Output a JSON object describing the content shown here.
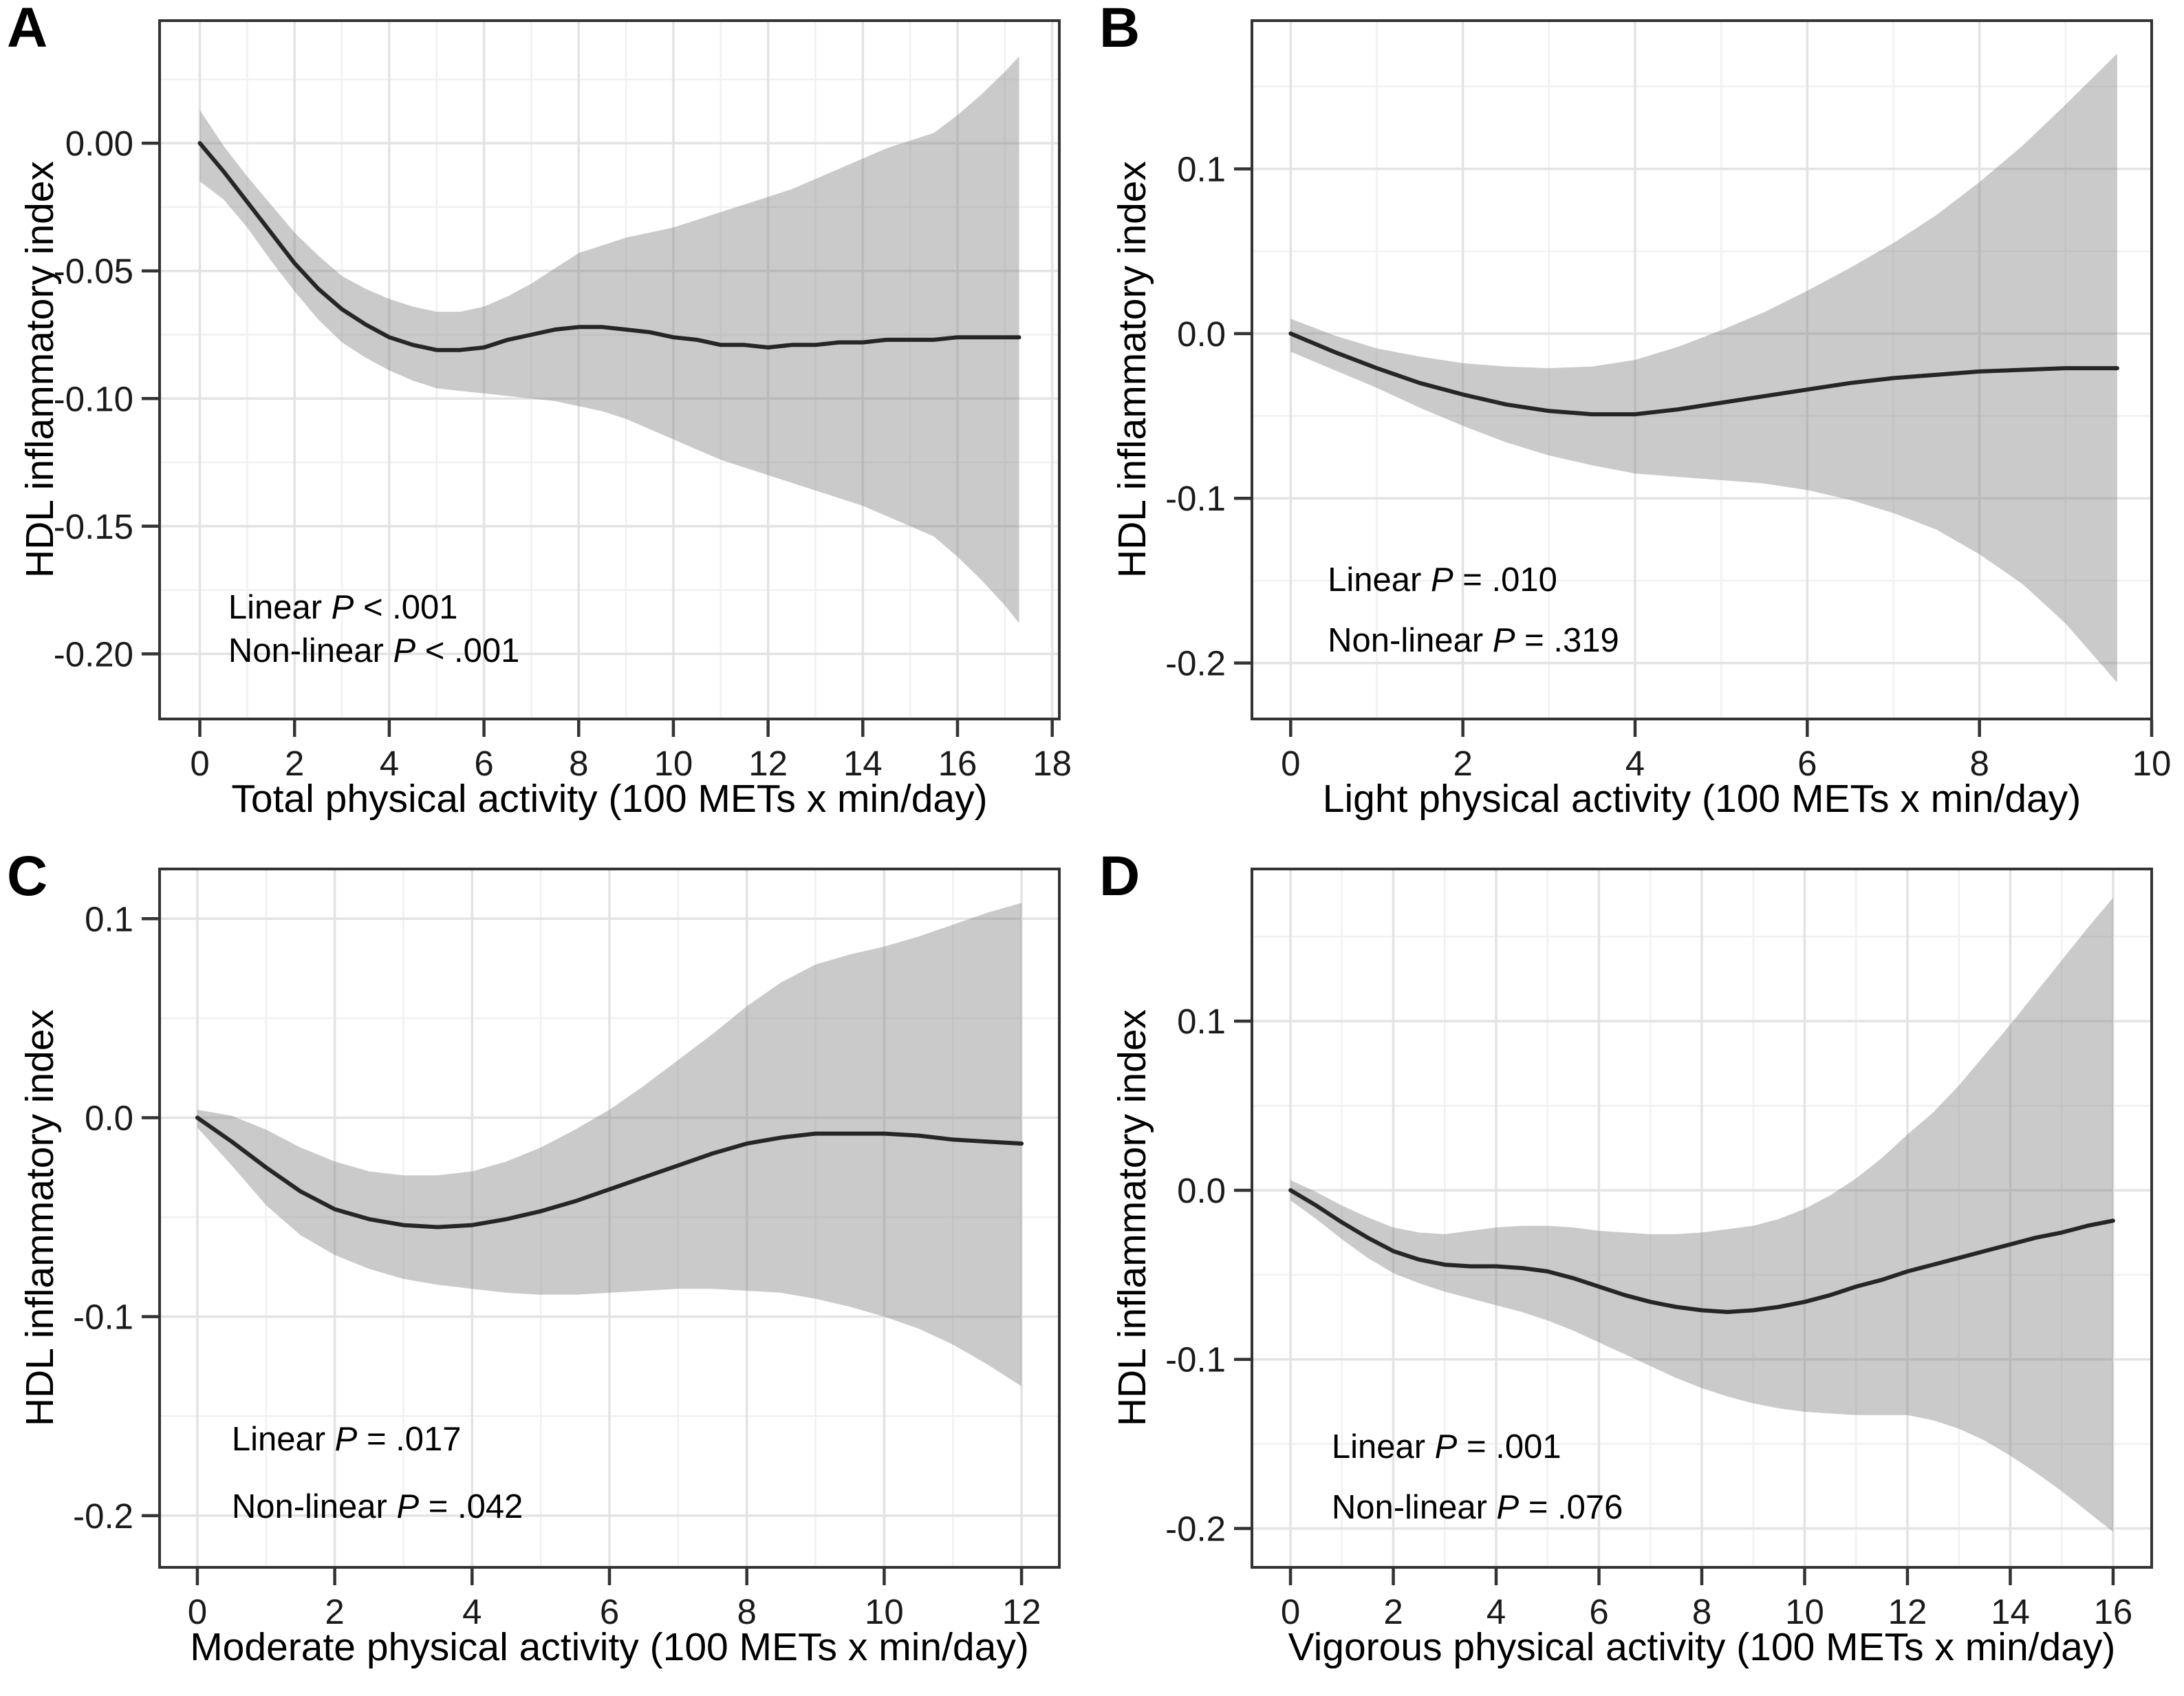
{
  "figure": {
    "colors": {
      "background": "#ffffff",
      "curve": "#262626",
      "band": "rgba(128,128,128,0.42)",
      "grid_major": "#e3e3e3",
      "grid_minor": "#f1f1f1",
      "border": "#333333",
      "tick_text": "#1a1a1a"
    }
  },
  "chart_data": [
    {
      "panel": "A",
      "type": "line",
      "xlabel": "Total physical activity (100 METs x min/day)",
      "ylabel": "HDL inflammatory index",
      "legend": "none",
      "grid": "on",
      "annotations": [
        {
          "prefix": "Linear ",
          "p": "P",
          "rest": " < .001",
          "x": 0.6,
          "y": -0.182
        },
        {
          "prefix": "Non-linear ",
          "p": "P",
          "rest": " < .001",
          "x": 0.6,
          "y": -0.199
        }
      ],
      "xlim": [
        -0.85,
        18.15
      ],
      "ylim": [
        -0.2255,
        0.048
      ],
      "xticks": [
        0,
        2,
        4,
        6,
        8,
        10,
        12,
        14,
        16,
        18
      ],
      "x_minor": [
        1,
        3,
        5,
        7,
        9,
        11,
        13,
        15,
        17
      ],
      "yticks": [
        {
          "v": 0.0,
          "label": "0.00"
        },
        {
          "v": -0.05,
          "label": "-0.05"
        },
        {
          "v": -0.1,
          "label": "-0.10"
        },
        {
          "v": -0.15,
          "label": "-0.15"
        },
        {
          "v": -0.2,
          "label": "-0.20"
        }
      ],
      "y_minor": [
        0.025,
        -0.025,
        -0.075,
        -0.125,
        -0.175
      ],
      "series": {
        "x": [
          0,
          0.5,
          1,
          1.5,
          2,
          2.5,
          3,
          3.5,
          4,
          4.5,
          5,
          5.5,
          6,
          6.5,
          7,
          7.5,
          8,
          8.5,
          9,
          9.5,
          10,
          10.5,
          11,
          11.5,
          12,
          12.5,
          13,
          13.5,
          14,
          14.5,
          15,
          15.5,
          16,
          16.5,
          17,
          17.3
        ],
        "y": [
          0,
          -0.011,
          -0.023,
          -0.035,
          -0.047,
          -0.057,
          -0.065,
          -0.071,
          -0.076,
          -0.079,
          -0.081,
          -0.081,
          -0.08,
          -0.077,
          -0.075,
          -0.073,
          -0.072,
          -0.072,
          -0.073,
          -0.074,
          -0.076,
          -0.077,
          -0.079,
          -0.079,
          -0.08,
          -0.079,
          -0.079,
          -0.078,
          -0.078,
          -0.077,
          -0.077,
          -0.077,
          -0.076,
          -0.076,
          -0.076,
          -0.076
        ],
        "hi": [
          0.013,
          -0.001,
          -0.013,
          -0.024,
          -0.035,
          -0.044,
          -0.052,
          -0.057,
          -0.061,
          -0.064,
          -0.066,
          -0.066,
          -0.064,
          -0.06,
          -0.055,
          -0.049,
          -0.043,
          -0.04,
          -0.037,
          -0.035,
          -0.033,
          -0.03,
          -0.027,
          -0.024,
          -0.021,
          -0.018,
          -0.014,
          -0.01,
          -0.006,
          -0.002,
          0.001,
          0.004,
          0.011,
          0.019,
          0.028,
          0.034
        ],
        "lo": [
          -0.015,
          -0.022,
          -0.033,
          -0.046,
          -0.058,
          -0.069,
          -0.078,
          -0.084,
          -0.089,
          -0.093,
          -0.096,
          -0.097,
          -0.098,
          -0.099,
          -0.1,
          -0.101,
          -0.103,
          -0.105,
          -0.108,
          -0.112,
          -0.116,
          -0.12,
          -0.124,
          -0.127,
          -0.13,
          -0.133,
          -0.136,
          -0.139,
          -0.142,
          -0.146,
          -0.15,
          -0.154,
          -0.162,
          -0.171,
          -0.181,
          -0.188
        ]
      }
    },
    {
      "panel": "B",
      "type": "line",
      "xlabel": "Light physical activity (100 METs x min/day)",
      "ylabel": "HDL inflammatory index",
      "legend": "none",
      "grid": "on",
      "annotations": [
        {
          "prefix": "Linear ",
          "p": "P",
          "rest": " = .010",
          "x": 0.43,
          "y": -0.15
        },
        {
          "prefix": "Non-linear ",
          "p": "P",
          "rest": " = .319",
          "x": 0.43,
          "y": -0.187
        }
      ],
      "xlim": [
        -0.45,
        10.0
      ],
      "ylim": [
        -0.234,
        0.19
      ],
      "xticks": [
        0,
        2,
        4,
        6,
        8,
        10
      ],
      "x_minor": [
        1,
        3,
        5,
        7,
        9
      ],
      "yticks": [
        {
          "v": 0.1,
          "label": "0.1"
        },
        {
          "v": 0.0,
          "label": "0.0"
        },
        {
          "v": -0.1,
          "label": "-0.1"
        },
        {
          "v": -0.2,
          "label": "-0.2"
        }
      ],
      "y_minor": [
        0.15,
        0.05,
        -0.05,
        -0.15
      ],
      "series": {
        "x": [
          0,
          0.5,
          1,
          1.5,
          2,
          2.5,
          3,
          3.5,
          4,
          4.5,
          5,
          5.5,
          6,
          6.5,
          7,
          7.5,
          8,
          8.5,
          9,
          9.6
        ],
        "y": [
          0,
          -0.011,
          -0.021,
          -0.03,
          -0.037,
          -0.043,
          -0.047,
          -0.049,
          -0.049,
          -0.046,
          -0.042,
          -0.038,
          -0.034,
          -0.03,
          -0.027,
          -0.025,
          -0.023,
          -0.022,
          -0.021,
          -0.021
        ],
        "hi": [
          0.009,
          -0.001,
          -0.009,
          -0.014,
          -0.018,
          -0.02,
          -0.021,
          -0.02,
          -0.016,
          -0.008,
          0.002,
          0.013,
          0.026,
          0.04,
          0.055,
          0.072,
          0.092,
          0.114,
          0.139,
          0.17
        ],
        "lo": [
          -0.011,
          -0.022,
          -0.033,
          -0.045,
          -0.056,
          -0.066,
          -0.074,
          -0.08,
          -0.085,
          -0.087,
          -0.089,
          -0.091,
          -0.095,
          -0.101,
          -0.109,
          -0.119,
          -0.134,
          -0.152,
          -0.176,
          -0.212
        ]
      }
    },
    {
      "panel": "C",
      "type": "line",
      "xlabel": "Moderate physical activity (100 METs x min/day)",
      "ylabel": "HDL inflammatory index",
      "legend": "none",
      "grid": "on",
      "annotations": [
        {
          "prefix": "Linear ",
          "p": "P",
          "rest": " = .017",
          "x": 0.5,
          "y": -0.162
        },
        {
          "prefix": "Non-linear ",
          "p": "P",
          "rest": " = .042",
          "x": 0.5,
          "y": -0.196
        }
      ],
      "xlim": [
        -0.55,
        12.55
      ],
      "ylim": [
        -0.226,
        0.125
      ],
      "xticks": [
        0,
        2,
        4,
        6,
        8,
        10,
        12
      ],
      "x_minor": [
        1,
        3,
        5,
        7,
        9,
        11
      ],
      "yticks": [
        {
          "v": 0.1,
          "label": "0.1"
        },
        {
          "v": 0.0,
          "label": "0.0"
        },
        {
          "v": -0.1,
          "label": "-0.1"
        },
        {
          "v": -0.2,
          "label": "-0.2"
        }
      ],
      "y_minor": [
        0.05,
        -0.05,
        -0.15
      ],
      "series": {
        "x": [
          0,
          0.5,
          1,
          1.5,
          2,
          2.5,
          3,
          3.5,
          4,
          4.5,
          5,
          5.5,
          6,
          6.5,
          7,
          7.5,
          8,
          8.5,
          9,
          9.5,
          10,
          10.5,
          11,
          11.5,
          12
        ],
        "y": [
          0,
          -0.012,
          -0.025,
          -0.037,
          -0.046,
          -0.051,
          -0.054,
          -0.055,
          -0.054,
          -0.051,
          -0.047,
          -0.042,
          -0.036,
          -0.03,
          -0.024,
          -0.018,
          -0.013,
          -0.01,
          -0.008,
          -0.008,
          -0.008,
          -0.009,
          -0.011,
          -0.012,
          -0.013
        ],
        "hi": [
          0.004,
          0.001,
          -0.006,
          -0.015,
          -0.022,
          -0.027,
          -0.029,
          -0.029,
          -0.027,
          -0.022,
          -0.015,
          -0.006,
          0.004,
          0.016,
          0.029,
          0.042,
          0.056,
          0.068,
          0.077,
          0.082,
          0.086,
          0.091,
          0.097,
          0.103,
          0.108
        ],
        "lo": [
          -0.005,
          -0.024,
          -0.044,
          -0.059,
          -0.069,
          -0.076,
          -0.081,
          -0.084,
          -0.086,
          -0.088,
          -0.089,
          -0.089,
          -0.088,
          -0.087,
          -0.086,
          -0.086,
          -0.087,
          -0.088,
          -0.091,
          -0.095,
          -0.1,
          -0.106,
          -0.114,
          -0.124,
          -0.135
        ]
      }
    },
    {
      "panel": "D",
      "type": "line",
      "xlabel": "Vigorous physical activity (100 METs x min/day)",
      "ylabel": "HDL inflammatory index",
      "legend": "none",
      "grid": "on",
      "annotations": [
        {
          "prefix": "Linear ",
          "p": "P",
          "rest": " = .001",
          "x": 0.8,
          "y": -0.152
        },
        {
          "prefix": "Non-linear ",
          "p": "P",
          "rest": " = .076",
          "x": 0.8,
          "y": -0.188
        }
      ],
      "xlim": [
        -0.75,
        16.75
      ],
      "ylim": [
        -0.223,
        0.19
      ],
      "xticks": [
        0,
        2,
        4,
        6,
        8,
        10,
        12,
        14,
        16
      ],
      "x_minor": [
        1,
        3,
        5,
        7,
        9,
        11,
        13,
        15
      ],
      "yticks": [
        {
          "v": 0.1,
          "label": "0.1"
        },
        {
          "v": 0.0,
          "label": "0.0"
        },
        {
          "v": -0.1,
          "label": "-0.1"
        },
        {
          "v": -0.2,
          "label": "-0.2"
        }
      ],
      "y_minor": [
        0.15,
        0.05,
        -0.05,
        -0.15
      ],
      "series": {
        "x": [
          0,
          0.5,
          1,
          1.5,
          2,
          2.5,
          3,
          3.5,
          4,
          4.5,
          5,
          5.5,
          6,
          6.5,
          7,
          7.5,
          8,
          8.5,
          9,
          9.5,
          10,
          10.5,
          11,
          11.5,
          12,
          12.5,
          13,
          13.5,
          14,
          14.5,
          15,
          15.5,
          16
        ],
        "y": [
          0,
          -0.009,
          -0.019,
          -0.028,
          -0.036,
          -0.041,
          -0.044,
          -0.045,
          -0.045,
          -0.046,
          -0.048,
          -0.052,
          -0.057,
          -0.062,
          -0.066,
          -0.069,
          -0.071,
          -0.072,
          -0.071,
          -0.069,
          -0.066,
          -0.062,
          -0.057,
          -0.053,
          -0.048,
          -0.044,
          -0.04,
          -0.036,
          -0.032,
          -0.028,
          -0.025,
          -0.021,
          -0.018
        ],
        "hi": [
          0.006,
          -0.001,
          -0.009,
          -0.016,
          -0.022,
          -0.025,
          -0.026,
          -0.024,
          -0.022,
          -0.021,
          -0.021,
          -0.022,
          -0.024,
          -0.025,
          -0.026,
          -0.026,
          -0.025,
          -0.023,
          -0.021,
          -0.017,
          -0.011,
          -0.003,
          0.007,
          0.019,
          0.033,
          0.046,
          0.062,
          0.08,
          0.098,
          0.117,
          0.136,
          0.155,
          0.173
        ],
        "lo": [
          -0.006,
          -0.017,
          -0.029,
          -0.04,
          -0.049,
          -0.055,
          -0.06,
          -0.064,
          -0.068,
          -0.072,
          -0.077,
          -0.083,
          -0.09,
          -0.097,
          -0.104,
          -0.111,
          -0.117,
          -0.122,
          -0.126,
          -0.129,
          -0.131,
          -0.132,
          -0.133,
          -0.133,
          -0.133,
          -0.136,
          -0.141,
          -0.148,
          -0.157,
          -0.167,
          -0.178,
          -0.19,
          -0.202
        ]
      }
    }
  ]
}
